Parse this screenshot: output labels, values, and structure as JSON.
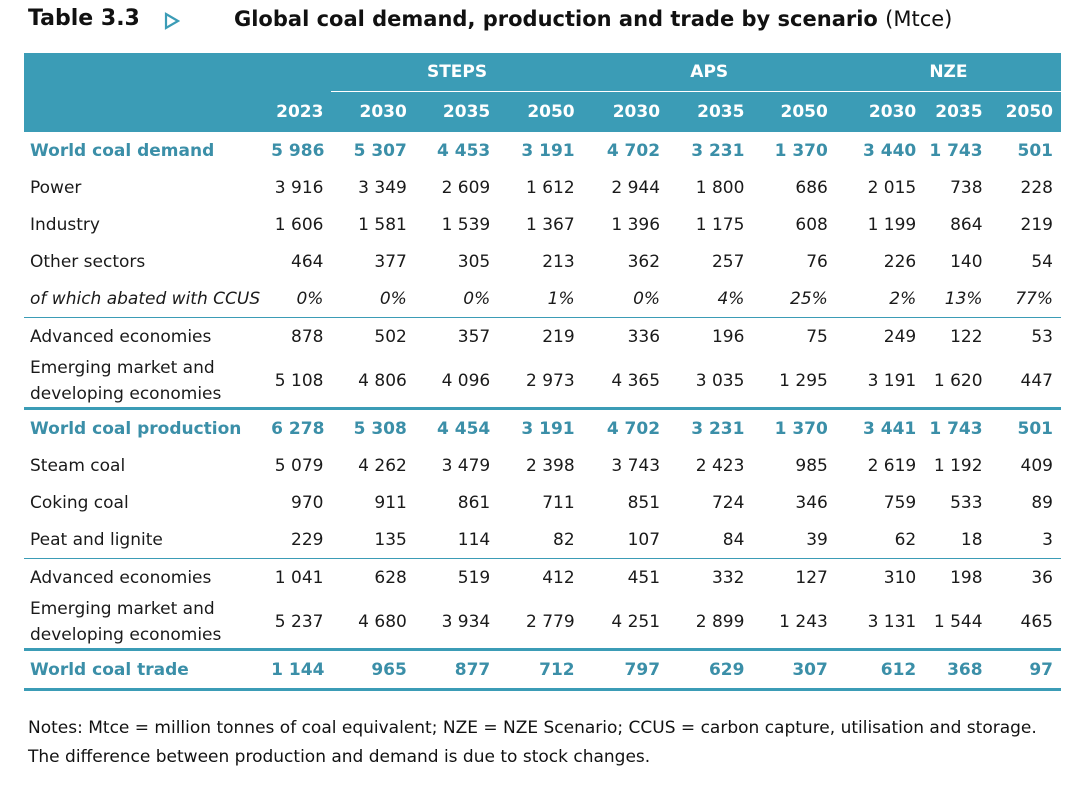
{
  "header": {
    "table_number": "Table 3.3",
    "title": "Global coal demand, production and trade by scenario",
    "unit": "(Mtce)"
  },
  "columns": {
    "scenarios": [
      "STEPS",
      "APS",
      "NZE"
    ],
    "years": [
      "2023",
      "2030",
      "2035",
      "2050",
      "2030",
      "2035",
      "2050",
      "2030",
      "2035",
      "2050"
    ]
  },
  "rows": [
    {
      "label": "World coal demand",
      "values": [
        "5 986",
        "5 307",
        "4 453",
        "3 191",
        "4 702",
        "3 231",
        "1 370",
        "3 440",
        "1 743",
        "501"
      ]
    },
    {
      "label": "Power",
      "values": [
        "3 916",
        "3 349",
        "2 609",
        "1 612",
        "2 944",
        "1 800",
        "686",
        "2 015",
        "738",
        "228"
      ]
    },
    {
      "label": "Industry",
      "values": [
        "1 606",
        "1 581",
        "1 539",
        "1 367",
        "1 396",
        "1 175",
        "608",
        "1 199",
        "864",
        "219"
      ]
    },
    {
      "label": "Other sectors",
      "values": [
        "464",
        "377",
        "305",
        "213",
        "362",
        "257",
        "76",
        "226",
        "140",
        "54"
      ]
    },
    {
      "label": "of which abated with CCUS",
      "values": [
        "0%",
        "0%",
        "0%",
        "1%",
        "0%",
        "4%",
        "25%",
        "2%",
        "13%",
        "77%"
      ]
    },
    {
      "label": "Advanced economies",
      "values": [
        "878",
        "502",
        "357",
        "219",
        "336",
        "196",
        "75",
        "249",
        "122",
        "53"
      ]
    },
    {
      "label": "Emerging market and developing economies",
      "values": [
        "5 108",
        "4 806",
        "4 096",
        "2 973",
        "4 365",
        "3 035",
        "1 295",
        "3 191",
        "1 620",
        "447"
      ]
    },
    {
      "label": "World coal production",
      "values": [
        "6 278",
        "5 308",
        "4 454",
        "3 191",
        "4 702",
        "3 231",
        "1 370",
        "3 441",
        "1 743",
        "501"
      ]
    },
    {
      "label": "Steam coal",
      "values": [
        "5 079",
        "4 262",
        "3 479",
        "2 398",
        "3 743",
        "2 423",
        "985",
        "2 619",
        "1 192",
        "409"
      ]
    },
    {
      "label": "Coking coal",
      "values": [
        "970",
        "911",
        "861",
        "711",
        "851",
        "724",
        "346",
        "759",
        "533",
        "89"
      ]
    },
    {
      "label": "Peat and lignite",
      "values": [
        "229",
        "135",
        "114",
        "82",
        "107",
        "84",
        "39",
        "62",
        "18",
        "3"
      ]
    },
    {
      "label": "Advanced economies",
      "values": [
        "1 041",
        "628",
        "519",
        "412",
        "451",
        "332",
        "127",
        "310",
        "198",
        "36"
      ]
    },
    {
      "label": "Emerging market and developing economies",
      "values": [
        "5 237",
        "4 680",
        "3 934",
        "2 779",
        "4 251",
        "2 899",
        "1 243",
        "3 131",
        "1 544",
        "465"
      ]
    },
    {
      "label": "World coal trade",
      "values": [
        "1 144",
        "965",
        "877",
        "712",
        "797",
        "629",
        "307",
        "612",
        "368",
        "97"
      ]
    }
  ],
  "notes": "Notes: Mtce = million tonnes of coal equivalent; NZE = NZE Scenario; CCUS = carbon capture, utilisation and storage. The difference between production and demand is due to stock changes.",
  "colors": {
    "accent": "#3b9cb6",
    "highlight_text": "#3b8fa8"
  }
}
